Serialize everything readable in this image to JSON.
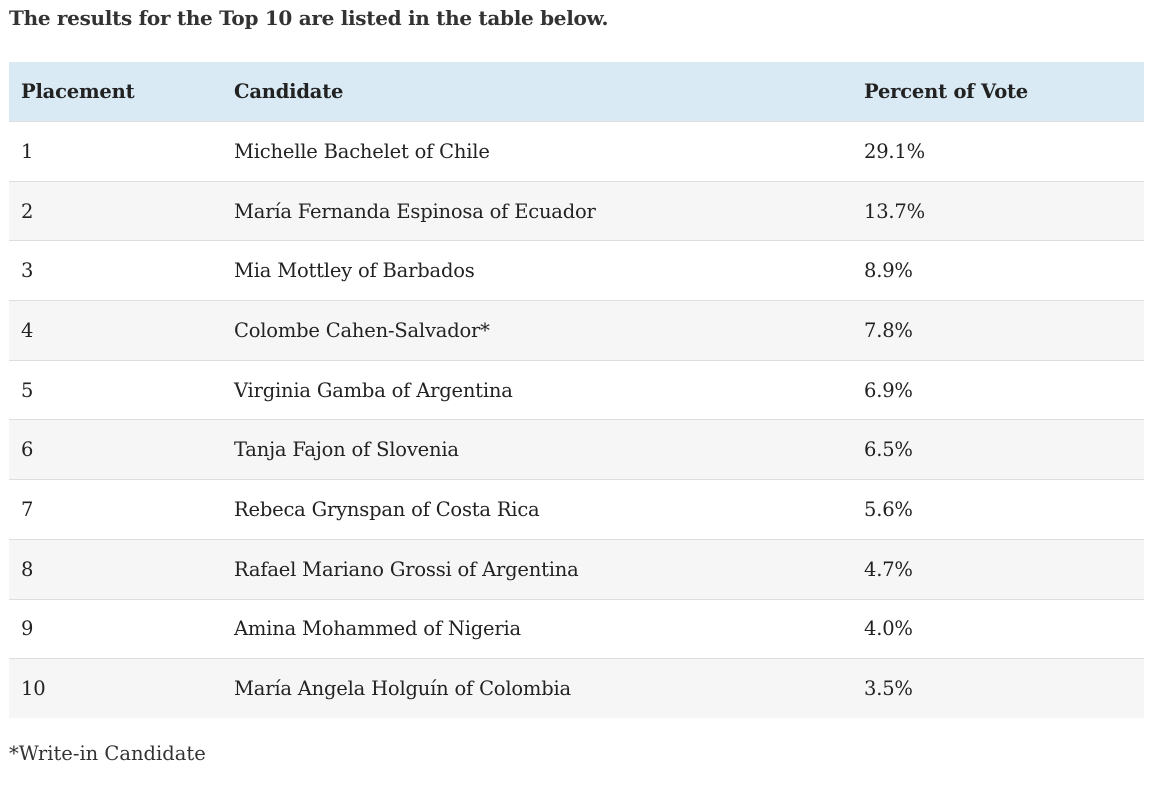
{
  "intro": "The results for the Top 10 are listed in the table below.",
  "table": {
    "header": [
      "Placement",
      "Candidate",
      "Percent of Vote"
    ],
    "rows": [
      [
        "1",
        "Michelle Bachelet of Chile",
        "29.1%"
      ],
      [
        "2",
        "María Fernanda Espinosa of Ecuador",
        "13.7%"
      ],
      [
        "3",
        "Mia Mottley of Barbados",
        "8.9%"
      ],
      [
        "4",
        "Colombe Cahen-Salvador*",
        "7.8%"
      ],
      [
        "5",
        "Virginia Gamba of Argentina",
        "6.9%"
      ],
      [
        "6",
        "Tanja Fajon of Slovenia",
        "6.5%"
      ],
      [
        "7",
        "Rebeca Grynspan of Costa Rica",
        "5.6%"
      ],
      [
        "8",
        "Rafael Mariano Grossi of Argentina",
        "4.7%"
      ],
      [
        "9",
        "Amina Mohammed of Nigeria",
        "4.0%"
      ],
      [
        "10",
        "María Angela Holguín of Colombia",
        "3.5%"
      ]
    ]
  },
  "footnote": "*Write-in Candidate"
}
